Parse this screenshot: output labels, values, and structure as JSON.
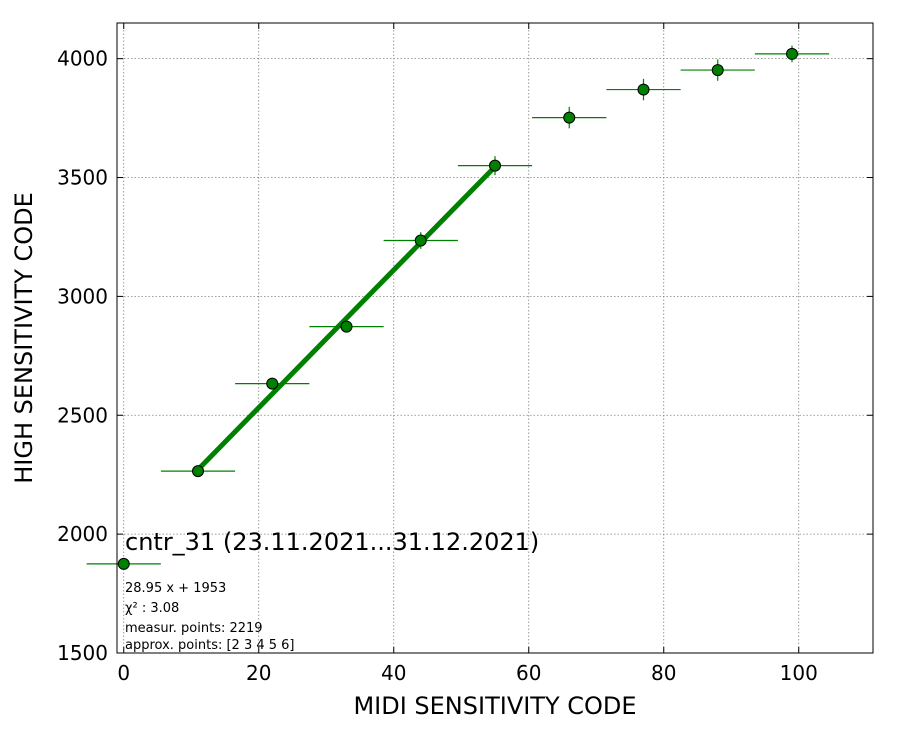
{
  "chart_data": {
    "type": "scatter",
    "title": "cntr_31 (23.11.2021...31.12.2021)",
    "xlabel": "MIDI SENSITIVITY CODE",
    "ylabel": "HIGH SENSITIVITY CODE",
    "xlim": [
      -1,
      111
    ],
    "ylim": [
      1500,
      4150
    ],
    "xticks": [
      0,
      20,
      40,
      60,
      80,
      100
    ],
    "yticks": [
      1500,
      2000,
      2500,
      3000,
      3500,
      4000
    ],
    "grid": true,
    "marker_color": "#008000",
    "fit_color": "#008000",
    "series": [
      {
        "x": [
          0,
          11,
          22,
          33,
          44,
          55,
          66,
          77,
          88,
          99
        ],
        "y": [
          1875,
          2265,
          2633,
          2873,
          3235,
          3550,
          3752,
          3870,
          3952,
          4020
        ],
        "xerr": [
          5.5,
          5.5,
          5.5,
          5.5,
          5.5,
          5.5,
          5.5,
          5.5,
          5.5,
          5.5
        ],
        "yerr": [
          8,
          12,
          20,
          25,
          35,
          40,
          45,
          45,
          45,
          35
        ]
      }
    ],
    "fit_line": {
      "slope": 28.95,
      "intercept": 1953,
      "x_range": [
        11,
        55
      ]
    },
    "annotations": [
      "28.95 x + 1953",
      "χ² : 3.08",
      "measur. points: 2219",
      "approx. points: [2 3 4 5 6]"
    ]
  }
}
